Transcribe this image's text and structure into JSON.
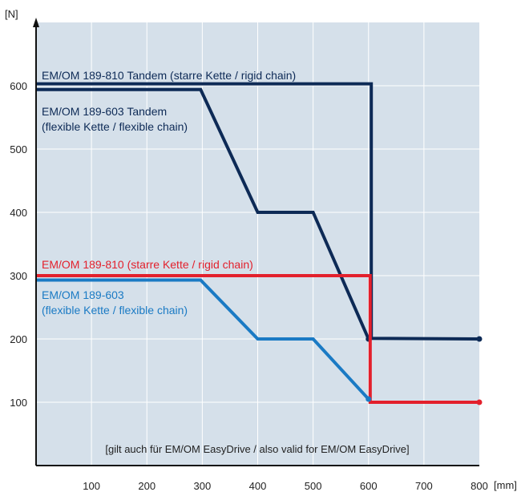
{
  "chart_data": {
    "type": "line",
    "y_unit": "[N]",
    "x_unit": "[mm]",
    "xlim": [
      0,
      800
    ],
    "ylim": [
      0,
      700
    ],
    "xticks": [
      100,
      200,
      300,
      400,
      500,
      600,
      700,
      800
    ],
    "yticks": [
      100,
      200,
      300,
      400,
      500,
      600
    ],
    "grid": true,
    "series": [
      {
        "name": [
          "EM/OM 189-810 Tandem (starre Kette / rigid chain)"
        ],
        "color": "#0d2a56",
        "x": [
          0,
          605,
          605,
          800
        ],
        "values": [
          603,
          603,
          201,
          200
        ]
      },
      {
        "name": [
          "EM/OM 189-603 Tandem",
          "(flexible Kette / flexible chain)"
        ],
        "color": "#0d2a56",
        "x": [
          0,
          297,
          400,
          500,
          600
        ],
        "values": [
          594,
          594,
          400,
          400,
          200
        ]
      },
      {
        "name": [
          "EM/OM 189-810 (starre Kette / rigid chain)"
        ],
        "color": "#e3202c",
        "x": [
          0,
          603,
          603,
          800
        ],
        "values": [
          300,
          300,
          100,
          100
        ]
      },
      {
        "name": [
          "EM/OM 189-603",
          "(flexible Kette / flexible chain)"
        ],
        "color": "#1a7ac4",
        "x": [
          0,
          297,
          400,
          500,
          600
        ],
        "values": [
          293,
          293,
          200,
          200,
          105
        ]
      }
    ],
    "annotation": "[gilt auch für EM/OM EasyDrive / also valid for EM/OM EasyDrive]"
  }
}
